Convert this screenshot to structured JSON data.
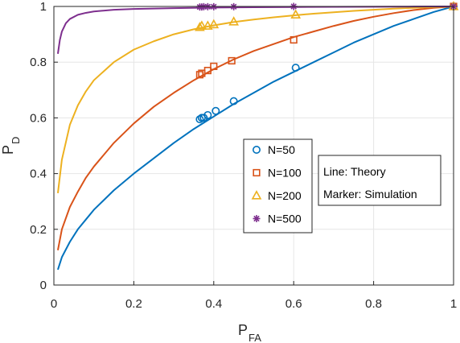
{
  "chart_data": {
    "type": "line",
    "xlabel": {
      "main": "P",
      "sub": "FA"
    },
    "ylabel": {
      "main": "P",
      "sub": "D"
    },
    "xlim": [
      0,
      1
    ],
    "ylim": [
      0,
      1
    ],
    "xticks": [
      "0",
      "0.2",
      "0.4",
      "0.6",
      "0.8",
      "1"
    ],
    "yticks": [
      "0",
      "0.2",
      "0.4",
      "0.6",
      "0.8",
      "1"
    ],
    "grid": true,
    "legend_placement": "center-right",
    "series": [
      {
        "name": "N=50",
        "color": "#0072bd",
        "marker": "circle",
        "theory_curve": {
          "x": [
            0.01,
            0.02,
            0.04,
            0.06,
            0.08,
            0.1,
            0.15,
            0.2,
            0.25,
            0.3,
            0.35,
            0.4,
            0.45,
            0.5,
            0.55,
            0.6,
            0.65,
            0.7,
            0.75,
            0.8,
            0.85,
            0.9,
            0.95,
            1.0
          ],
          "y": [
            0.055,
            0.1,
            0.155,
            0.2,
            0.235,
            0.27,
            0.34,
            0.4,
            0.455,
            0.51,
            0.56,
            0.605,
            0.65,
            0.69,
            0.73,
            0.765,
            0.8,
            0.835,
            0.87,
            0.9,
            0.93,
            0.955,
            0.98,
            1.0
          ]
        },
        "simulation_points": {
          "x": [
            0.365,
            0.37,
            0.375,
            0.385,
            0.405,
            0.45,
            0.605,
            1.0
          ],
          "y": [
            0.595,
            0.6,
            0.6,
            0.61,
            0.625,
            0.66,
            0.78,
            1.0
          ]
        }
      },
      {
        "name": "N=100",
        "color": "#d95319",
        "marker": "square",
        "theory_curve": {
          "x": [
            0.01,
            0.02,
            0.04,
            0.06,
            0.08,
            0.1,
            0.15,
            0.2,
            0.25,
            0.3,
            0.35,
            0.4,
            0.45,
            0.5,
            0.55,
            0.6,
            0.65,
            0.7,
            0.75,
            0.8,
            0.85,
            0.9,
            0.95,
            1.0
          ],
          "y": [
            0.125,
            0.2,
            0.28,
            0.335,
            0.385,
            0.425,
            0.51,
            0.58,
            0.64,
            0.69,
            0.735,
            0.775,
            0.81,
            0.84,
            0.865,
            0.89,
            0.91,
            0.93,
            0.948,
            0.963,
            0.976,
            0.987,
            0.995,
            1.0
          ]
        },
        "simulation_points": {
          "x": [
            0.365,
            0.37,
            0.385,
            0.4,
            0.445,
            0.6,
            1.0
          ],
          "y": [
            0.755,
            0.76,
            0.77,
            0.785,
            0.805,
            0.88,
            1.0
          ]
        }
      },
      {
        "name": "N=200",
        "color": "#edb120",
        "marker": "triangle",
        "theory_curve": {
          "x": [
            0.01,
            0.02,
            0.04,
            0.06,
            0.08,
            0.1,
            0.15,
            0.2,
            0.25,
            0.3,
            0.35,
            0.4,
            0.45,
            0.5,
            0.55,
            0.6,
            0.65,
            0.7,
            0.75,
            0.8,
            0.85,
            0.9,
            0.95,
            1.0
          ],
          "y": [
            0.33,
            0.45,
            0.575,
            0.645,
            0.695,
            0.735,
            0.8,
            0.845,
            0.875,
            0.9,
            0.918,
            0.932,
            0.944,
            0.953,
            0.961,
            0.968,
            0.974,
            0.979,
            0.984,
            0.988,
            0.992,
            0.995,
            0.998,
            1.0
          ]
        },
        "simulation_points": {
          "x": [
            0.365,
            0.37,
            0.385,
            0.4,
            0.45,
            0.605,
            1.0
          ],
          "y": [
            0.925,
            0.93,
            0.93,
            0.935,
            0.945,
            0.97,
            1.0
          ]
        }
      },
      {
        "name": "N=500",
        "color": "#7e2f8e",
        "marker": "asterisk",
        "theory_curve": {
          "x": [
            0.01,
            0.015,
            0.02,
            0.03,
            0.04,
            0.06,
            0.08,
            0.1,
            0.15,
            0.2,
            0.3,
            0.4,
            0.5,
            0.6,
            0.7,
            0.8,
            0.9,
            1.0
          ],
          "y": [
            0.83,
            0.88,
            0.91,
            0.94,
            0.955,
            0.97,
            0.977,
            0.982,
            0.988,
            0.991,
            0.994,
            0.996,
            0.997,
            0.998,
            0.9985,
            0.999,
            0.9995,
            1.0
          ]
        },
        "simulation_points": {
          "x": [
            0.365,
            0.37,
            0.375,
            0.385,
            0.4,
            0.45,
            0.6,
            1.0
          ],
          "y": [
            0.998,
            0.998,
            0.999,
            0.999,
            0.999,
            0.999,
            1.0,
            1.0
          ]
        }
      }
    ],
    "annotation": {
      "line1": "Line: Theory",
      "line2": "Marker: Simulation"
    }
  }
}
